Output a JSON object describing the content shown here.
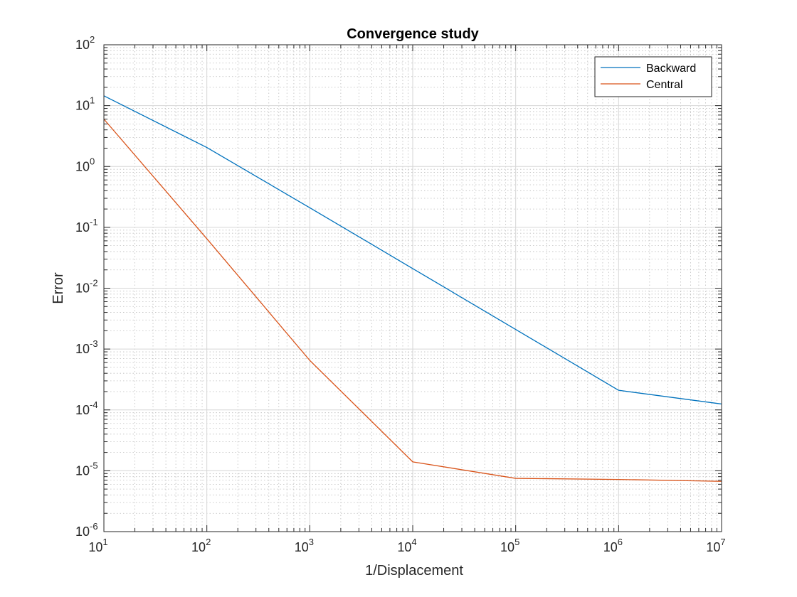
{
  "chart_data": {
    "type": "line",
    "title": "Convergence study",
    "xlabel": "1/Displacement",
    "ylabel": "Error",
    "x_scale": "log",
    "y_scale": "log",
    "xlim": [
      10,
      10000000
    ],
    "ylim": [
      1e-06,
      100
    ],
    "x_ticks": [
      {
        "base": "10",
        "exp": "1",
        "value": 10
      },
      {
        "base": "10",
        "exp": "2",
        "value": 100
      },
      {
        "base": "10",
        "exp": "3",
        "value": 1000
      },
      {
        "base": "10",
        "exp": "4",
        "value": 10000
      },
      {
        "base": "10",
        "exp": "5",
        "value": 100000
      },
      {
        "base": "10",
        "exp": "6",
        "value": 1000000
      },
      {
        "base": "10",
        "exp": "7",
        "value": 10000000
      }
    ],
    "y_ticks": [
      {
        "base": "10",
        "exp": "-6",
        "value": 1e-06
      },
      {
        "base": "10",
        "exp": "-5",
        "value": 1e-05
      },
      {
        "base": "10",
        "exp": "-4",
        "value": 0.0001
      },
      {
        "base": "10",
        "exp": "-3",
        "value": 0.001
      },
      {
        "base": "10",
        "exp": "-2",
        "value": 0.01
      },
      {
        "base": "10",
        "exp": "-1",
        "value": 0.1
      },
      {
        "base": "10",
        "exp": "0",
        "value": 1
      },
      {
        "base": "10",
        "exp": "1",
        "value": 10
      },
      {
        "base": "10",
        "exp": "2",
        "value": 100
      }
    ],
    "grid": true,
    "minor_grid": true,
    "legend_position": "top-right",
    "x": [
      10,
      100,
      1000,
      10000,
      100000,
      1000000,
      10000000
    ],
    "series": [
      {
        "name": "Backward",
        "color": "#0072BD",
        "values": [
          14.5,
          2.05,
          0.21,
          0.021,
          0.0021,
          0.00021,
          0.000125
        ]
      },
      {
        "name": "Central",
        "color": "#D95319",
        "values": [
          6.0,
          0.065,
          0.00065,
          1.4e-05,
          7.5e-06,
          7.2e-06,
          6.7e-06
        ]
      }
    ]
  }
}
